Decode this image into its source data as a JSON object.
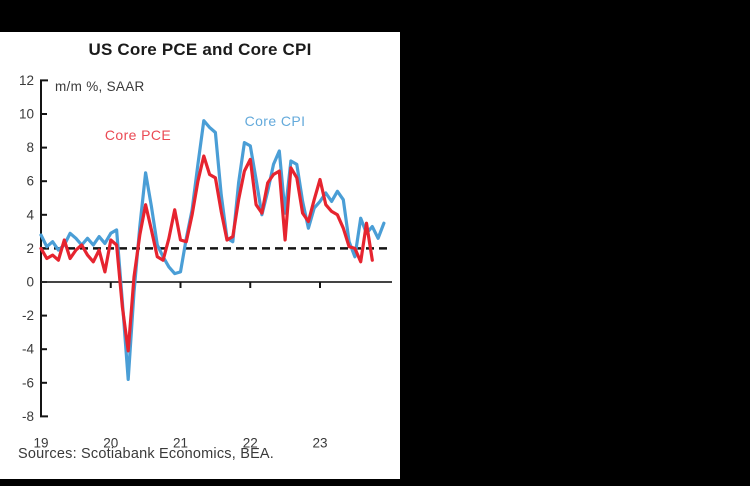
{
  "frame": {
    "background_color": "#000000",
    "panel_color": "#ffffff"
  },
  "chart_data": {
    "type": "line",
    "title": "US Core PCE and Core CPI",
    "units_label": "m/m %, SAAR",
    "source_note": "Sources: Scotiabank Economics, BEA.",
    "x_frequency": "monthly",
    "x_start": "2019-01",
    "ylim": [
      -8,
      12
    ],
    "y_ticks": [
      12,
      10,
      8,
      6,
      4,
      2,
      0,
      -2,
      -4,
      -6,
      -8
    ],
    "x_tick_labels": [
      "19",
      "20",
      "21",
      "22",
      "23"
    ],
    "x_tick_month_offsets": [
      0,
      12,
      24,
      36,
      48
    ],
    "grid": "off",
    "legend_position": "inline-labels",
    "reference_line": {
      "value": 2,
      "style": "dashed",
      "color": "#141414"
    },
    "axis_color": "#141414",
    "zero_line_color": "#2a2a2a",
    "series": [
      {
        "name": "Core CPI",
        "color": "#4a9ed6",
        "label_color": "#64aadb",
        "values": [
          2.8,
          2.1,
          2.4,
          1.9,
          2.2,
          2.9,
          2.6,
          2.2,
          2.6,
          2.2,
          2.7,
          2.3,
          2.9,
          3.1,
          -1.2,
          -5.8,
          -0.6,
          3.3,
          6.5,
          4.5,
          2.2,
          1.5,
          0.9,
          0.5,
          0.6,
          2.6,
          4.3,
          7.0,
          9.6,
          9.2,
          8.9,
          5.2,
          2.6,
          2.4,
          5.9,
          8.3,
          8.1,
          6.1,
          4.0,
          5.4,
          7.0,
          7.8,
          4.1,
          7.2,
          7.0,
          4.8,
          3.2,
          4.4,
          4.8,
          5.3,
          4.8,
          5.4,
          4.9,
          2.4,
          1.5,
          3.8,
          2.9,
          3.3,
          2.6,
          3.5
        ]
      },
      {
        "name": "Core PCE",
        "color": "#e6242f",
        "label_color": "#ea4a54",
        "values": [
          2.0,
          1.4,
          1.6,
          1.3,
          2.5,
          1.4,
          1.9,
          2.2,
          1.6,
          1.2,
          1.9,
          0.6,
          2.5,
          2.2,
          -1.5,
          -4.1,
          0.3,
          2.8,
          4.6,
          3.1,
          1.5,
          1.3,
          2.6,
          4.3,
          2.5,
          2.4,
          4.0,
          6.0,
          7.5,
          6.4,
          6.2,
          4.2,
          2.5,
          2.7,
          4.9,
          6.6,
          7.3,
          4.6,
          4.1,
          5.9,
          6.4,
          6.6,
          2.5,
          6.8,
          6.2,
          4.1,
          3.6,
          4.9,
          6.1,
          4.6,
          4.2,
          4.0,
          3.2,
          2.1,
          2.0,
          1.2,
          3.5,
          1.3
        ]
      }
    ]
  }
}
